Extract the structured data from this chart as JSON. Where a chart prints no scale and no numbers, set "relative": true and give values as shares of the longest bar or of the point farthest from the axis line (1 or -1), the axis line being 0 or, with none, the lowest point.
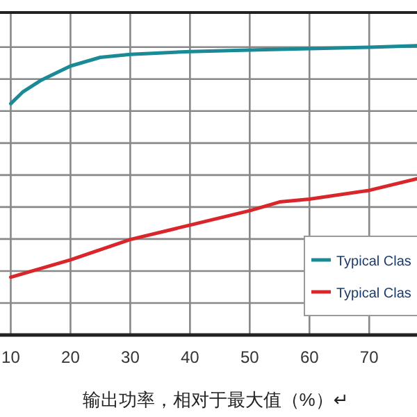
{
  "chart_data": {
    "type": "line",
    "xlabel": "输出功率，相对于最大值（%）↵",
    "relative": true,
    "xlim": [
      8.2,
      78
    ],
    "xticks": [
      10,
      20,
      30,
      40,
      50,
      60,
      70
    ],
    "grid": true,
    "legend": "bottom right",
    "series": [
      {
        "name": "Typical Clas",
        "color": "#1a8a96",
        "x": [
          10,
          12,
          15,
          20,
          25,
          30,
          40,
          50,
          60,
          70,
          78
        ],
        "values": [
          0.8,
          0.84,
          0.88,
          0.93,
          0.96,
          0.97,
          0.98,
          0.985,
          0.99,
          0.995,
          1
        ]
      },
      {
        "name": "Typical Clas",
        "color": "#d9262b",
        "x": [
          10,
          20,
          30,
          40,
          50,
          55,
          60,
          70,
          78
        ],
        "values": [
          0.2,
          0.26,
          0.33,
          0.38,
          0.43,
          0.46,
          0.47,
          0.5,
          0.54
        ]
      }
    ]
  }
}
